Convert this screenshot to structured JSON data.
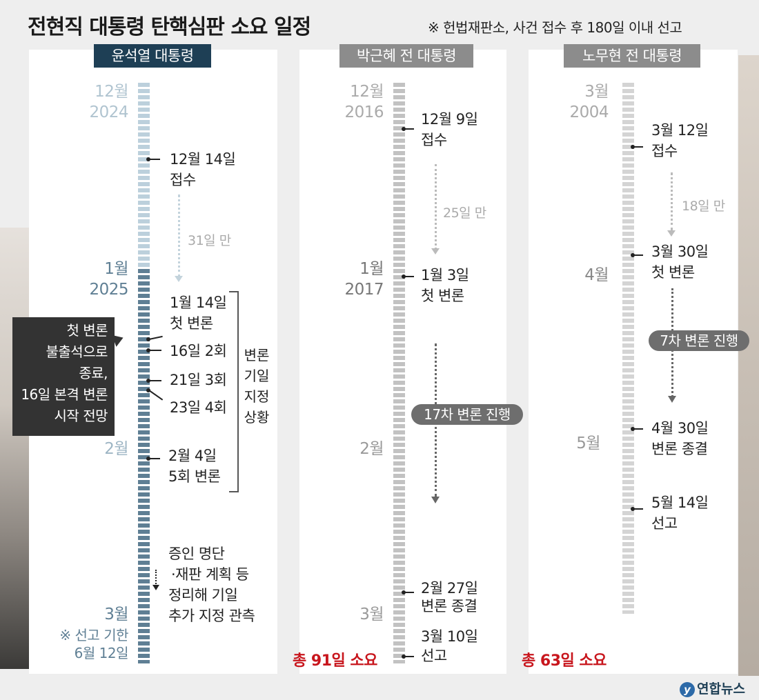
{
  "title": "전현직 대통령 탄핵심판 소요 일정",
  "note": "※ 헌법재판소, 사건 접수 후 180일 이내 선고",
  "colors": {
    "yoon": "#1e3f55",
    "gray": "#8c8c8c",
    "total_red": "#c8161d"
  },
  "yoon": {
    "header": "윤석열 대통령",
    "months": {
      "dec": "12월",
      "y2024": "2024",
      "jan": "1월",
      "y2025": "2025",
      "feb": "2월",
      "mar": "3월"
    },
    "events": {
      "receipt_date": "12월 14일",
      "receipt_label": "접수",
      "gap": "31일 만",
      "first_date": "1월 14일",
      "first_label": "첫 변론",
      "second": "16일 2회",
      "third": "21일 3회",
      "fourth": "23일 4회",
      "fifth_date": "2월 4일",
      "fifth_label": "5회 변론",
      "future_1": "증인 명단",
      "future_2": "·재판 계획 등",
      "future_3": "정리해 기일",
      "future_4": "추가 지정 관측"
    },
    "callout": [
      "첫 변론",
      "불출석으로",
      "종료,",
      "16일 본격 변론",
      "시작 전망"
    ],
    "brace_label": [
      "변론",
      "기일",
      "지정",
      "상황"
    ],
    "deadline_1": "※ 선고 기한",
    "deadline_2": "6월 12일"
  },
  "park": {
    "header": "박근혜 전 대통령",
    "months": {
      "dec": "12월",
      "y2016": "2016",
      "jan": "1월",
      "y2017": "2017",
      "feb": "2월",
      "mar": "3월"
    },
    "events": {
      "receipt_date": "12월 9일",
      "receipt_label": "접수",
      "gap": "25일 만",
      "first_date": "1월 3일",
      "first_label": "첫 변론",
      "progress": "17차 변론 진행",
      "end_date": "2월 27일",
      "end_label": "변론 종결",
      "verdict_date": "3월 10일",
      "verdict_label": "선고"
    },
    "total": "총 91일 소요"
  },
  "roh": {
    "header": "노무현 전 대통령",
    "months": {
      "mar": "3월",
      "y2004": "2004",
      "apr": "4월",
      "may": "5월"
    },
    "events": {
      "receipt_date": "3월 12일",
      "receipt_label": "접수",
      "gap": "18일 만",
      "first_date": "3월 30일",
      "first_label": "첫 변론",
      "progress": "7차 변론 진행",
      "end_date": "4월 30일",
      "end_label": "변론 종결",
      "verdict_date": "5월 14일",
      "verdict_label": "선고"
    },
    "total": "총 63일 소요"
  },
  "logo": "연합뉴스"
}
